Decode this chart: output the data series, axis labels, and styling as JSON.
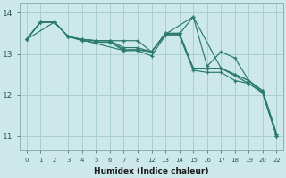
{
  "bg_color": "#cce8e8",
  "grid_color": "#aacfcf",
  "line_color": "#2a7a6a",
  "xlabel": "Humidex (Indice chaleur)",
  "xtick_labels": [
    "0",
    "1",
    "2",
    "3",
    "4",
    "5",
    "6",
    "7",
    "8",
    "12",
    "13",
    "14",
    "15",
    "16",
    "17",
    "18",
    "19",
    "20",
    "22"
  ],
  "yticks": [
    11,
    12,
    13,
    14
  ],
  "ylim": [
    10.65,
    14.25
  ],
  "series": [
    {
      "xi": [
        0,
        1,
        2,
        3,
        4,
        5,
        6,
        7,
        8,
        9,
        10,
        11,
        12,
        13,
        14,
        15,
        16,
        17,
        18
      ],
      "y": [
        13.35,
        13.77,
        13.77,
        13.42,
        13.35,
        13.32,
        13.32,
        13.32,
        13.32,
        13.05,
        13.48,
        13.48,
        13.9,
        12.7,
        13.05,
        12.9,
        12.35,
        12.05,
        11.0
      ]
    },
    {
      "xi": [
        0,
        1,
        2,
        3,
        4,
        5,
        6,
        7,
        8,
        9,
        10,
        11,
        12,
        13,
        14,
        15,
        16,
        17,
        18
      ],
      "y": [
        13.35,
        13.77,
        13.77,
        13.42,
        13.35,
        13.32,
        13.32,
        13.1,
        13.1,
        13.05,
        13.5,
        13.5,
        12.65,
        12.65,
        12.65,
        12.5,
        12.35,
        12.1,
        11.05
      ]
    },
    {
      "xi": [
        0,
        1,
        2,
        3,
        4,
        5,
        6,
        7,
        8,
        9,
        10,
        11,
        12,
        13,
        14,
        15,
        16,
        17,
        18
      ],
      "y": [
        13.35,
        13.77,
        13.77,
        13.42,
        13.35,
        13.32,
        13.32,
        13.15,
        13.15,
        13.05,
        13.5,
        13.5,
        12.65,
        12.65,
        12.65,
        12.5,
        12.35,
        12.1,
        11.05
      ]
    },
    {
      "xi": [
        0,
        2,
        3,
        7,
        8,
        9,
        10,
        12,
        14,
        16,
        17,
        18
      ],
      "y": [
        13.35,
        13.77,
        13.42,
        13.08,
        13.1,
        13.05,
        13.48,
        13.9,
        12.65,
        12.28,
        12.05,
        11.0
      ]
    },
    {
      "xi": [
        0,
        1,
        2,
        3,
        4,
        5,
        6,
        7,
        8,
        9,
        10,
        11,
        12,
        13,
        14,
        15,
        16,
        17,
        18
      ],
      "y": [
        13.35,
        13.77,
        13.77,
        13.42,
        13.32,
        13.28,
        13.28,
        13.08,
        13.08,
        12.95,
        13.45,
        13.45,
        12.6,
        12.55,
        12.55,
        12.35,
        12.28,
        12.05,
        11.0
      ]
    }
  ]
}
